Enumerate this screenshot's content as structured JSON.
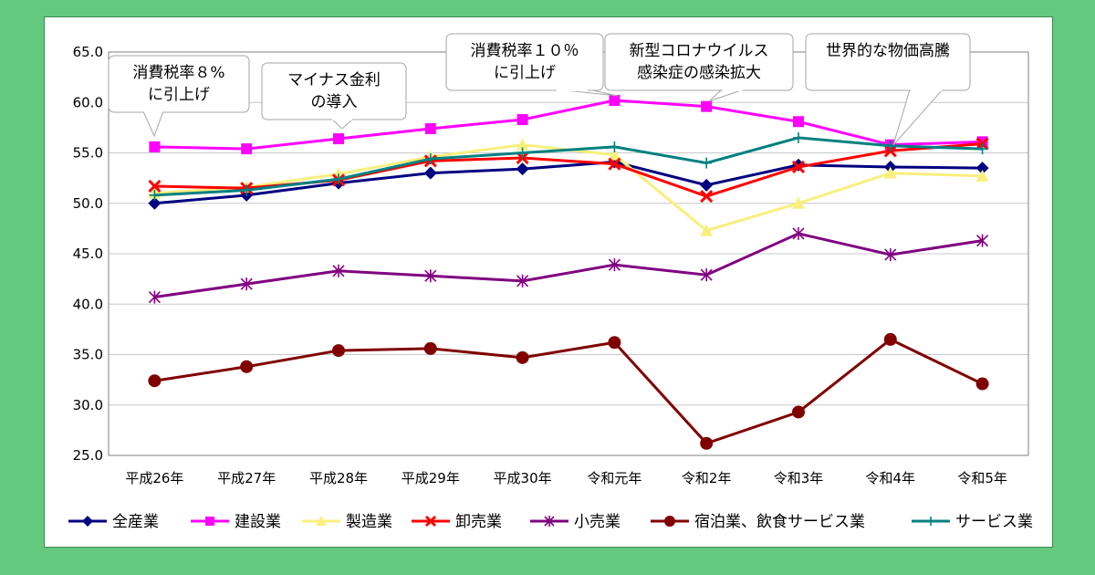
{
  "chart_data": {
    "type": "line",
    "categories": [
      "平成26年",
      "平成27年",
      "平成28年",
      "平成29年",
      "平成30年",
      "令和元年",
      "令和2年",
      "令和3年",
      "令和4年",
      "令和5年"
    ],
    "ylim": [
      25.0,
      65.0
    ],
    "yticks": [
      "25.0",
      "30.0",
      "35.0",
      "40.0",
      "45.0",
      "50.0",
      "55.0",
      "60.0",
      "65.0"
    ],
    "grid": true,
    "legend_position": "bottom",
    "series": [
      {
        "name": "全産業",
        "color": "#000080",
        "marker": "diamond",
        "values": [
          50.0,
          50.8,
          52.0,
          53.0,
          53.4,
          54.1,
          51.8,
          53.8,
          53.6,
          53.5
        ]
      },
      {
        "name": "建設業",
        "color": "#ff00ff",
        "marker": "square",
        "values": [
          55.6,
          55.4,
          56.4,
          57.4,
          58.3,
          60.2,
          59.6,
          58.1,
          55.8,
          56.1
        ]
      },
      {
        "name": "製造業",
        "color": "#f9ef7c",
        "marker": "triangle",
        "values": [
          51.0,
          51.6,
          52.9,
          54.6,
          55.8,
          54.8,
          47.3,
          50.0,
          53.0,
          52.7
        ]
      },
      {
        "name": "卸売業",
        "color": "#ff0000",
        "marker": "x",
        "values": [
          51.7,
          51.5,
          52.3,
          54.2,
          54.5,
          53.9,
          50.7,
          53.6,
          55.2,
          55.9
        ]
      },
      {
        "name": "小売業",
        "color": "#800080",
        "marker": "star",
        "values": [
          40.7,
          42.0,
          43.3,
          42.8,
          42.3,
          43.9,
          42.9,
          47.0,
          44.9,
          46.3
        ]
      },
      {
        "name": "宿泊業、飲食サービス業",
        "color": "#800000",
        "marker": "circle",
        "values": [
          32.4,
          33.8,
          35.4,
          35.6,
          34.7,
          36.2,
          26.2,
          29.3,
          36.5,
          32.1
        ]
      },
      {
        "name": "サービス業",
        "color": "#008080",
        "marker": "plus",
        "values": [
          50.8,
          51.3,
          52.4,
          54.4,
          55.0,
          55.6,
          54.0,
          56.5,
          55.7,
          55.4
        ]
      }
    ],
    "annotations": [
      {
        "lines": [
          "消費税率８%",
          "に引上げ"
        ]
      },
      {
        "lines": [
          "マイナス金利",
          "の導入"
        ]
      },
      {
        "lines": [
          "消費税率１０％",
          "に引上げ"
        ]
      },
      {
        "lines": [
          "新型コロナウイルス",
          "感染症の感染拡大"
        ]
      },
      {
        "lines": [
          "世界的な物価高騰"
        ]
      }
    ]
  }
}
